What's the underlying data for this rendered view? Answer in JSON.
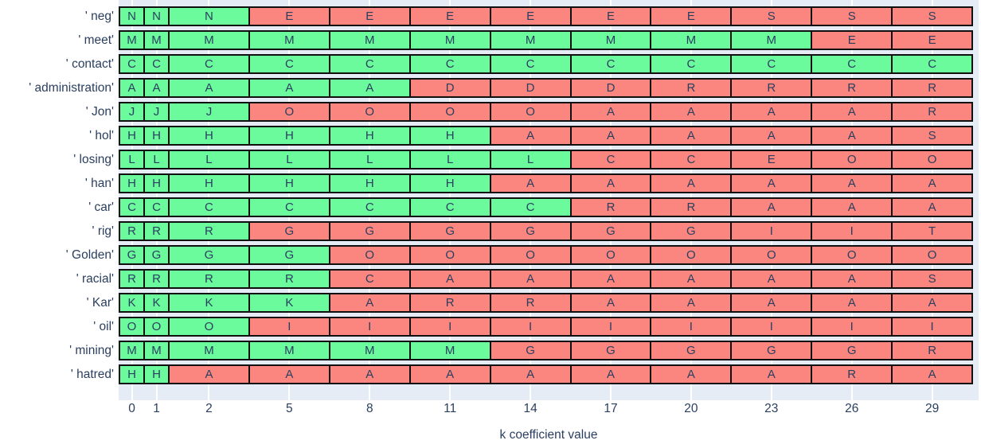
{
  "colors": {
    "match_green": "#6bfa9c",
    "mismatch_red": "#fa867f",
    "plot_background": "#e5ecf6",
    "text_navy": "#2a3f5f",
    "cell_border": "#101010",
    "gridline_white": "#ffffff"
  },
  "chart_data": {
    "type": "heatmap",
    "title": "",
    "xlabel": "k coefficient value",
    "ylabel": "",
    "x_ticks": [
      "0",
      "1",
      "2",
      "5",
      "8",
      "11",
      "14",
      "17",
      "20",
      "23",
      "26",
      "29"
    ],
    "grid": true,
    "legend_position": "none",
    "rows": [
      {
        "label": "' neg'",
        "letters": [
          "N",
          "N",
          "N",
          "E",
          "E",
          "E",
          "E",
          "E",
          "E",
          "S",
          "S",
          "S"
        ],
        "colors": [
          "green",
          "green",
          "green",
          "red",
          "red",
          "red",
          "red",
          "red",
          "red",
          "red",
          "red",
          "red"
        ]
      },
      {
        "label": "' meet'",
        "letters": [
          "M",
          "M",
          "M",
          "M",
          "M",
          "M",
          "M",
          "M",
          "M",
          "M",
          "E",
          "E"
        ],
        "colors": [
          "green",
          "green",
          "green",
          "green",
          "green",
          "green",
          "green",
          "green",
          "green",
          "green",
          "red",
          "red"
        ]
      },
      {
        "label": "' contact'",
        "letters": [
          "C",
          "C",
          "C",
          "C",
          "C",
          "C",
          "C",
          "C",
          "C",
          "C",
          "C",
          "C"
        ],
        "colors": [
          "green",
          "green",
          "green",
          "green",
          "green",
          "green",
          "green",
          "green",
          "green",
          "green",
          "green",
          "green"
        ]
      },
      {
        "label": "' administration'",
        "letters": [
          "A",
          "A",
          "A",
          "A",
          "A",
          "D",
          "D",
          "D",
          "R",
          "R",
          "R",
          "R"
        ],
        "colors": [
          "green",
          "green",
          "green",
          "green",
          "green",
          "red",
          "red",
          "red",
          "red",
          "red",
          "red",
          "red"
        ]
      },
      {
        "label": "' Jon'",
        "letters": [
          "J",
          "J",
          "J",
          "O",
          "O",
          "O",
          "O",
          "A",
          "A",
          "A",
          "A",
          "R"
        ],
        "colors": [
          "green",
          "green",
          "green",
          "red",
          "red",
          "red",
          "red",
          "red",
          "red",
          "red",
          "red",
          "red"
        ]
      },
      {
        "label": "' hol'",
        "letters": [
          "H",
          "H",
          "H",
          "H",
          "H",
          "H",
          "A",
          "A",
          "A",
          "A",
          "A",
          "S"
        ],
        "colors": [
          "green",
          "green",
          "green",
          "green",
          "green",
          "green",
          "red",
          "red",
          "red",
          "red",
          "red",
          "red"
        ]
      },
      {
        "label": "' losing'",
        "letters": [
          "L",
          "L",
          "L",
          "L",
          "L",
          "L",
          "L",
          "C",
          "C",
          "E",
          "O",
          "O"
        ],
        "colors": [
          "green",
          "green",
          "green",
          "green",
          "green",
          "green",
          "green",
          "red",
          "red",
          "red",
          "red",
          "red"
        ]
      },
      {
        "label": "' han'",
        "letters": [
          "H",
          "H",
          "H",
          "H",
          "H",
          "H",
          "A",
          "A",
          "A",
          "A",
          "A",
          "A"
        ],
        "colors": [
          "green",
          "green",
          "green",
          "green",
          "green",
          "green",
          "red",
          "red",
          "red",
          "red",
          "red",
          "red"
        ]
      },
      {
        "label": "' car'",
        "letters": [
          "C",
          "C",
          "C",
          "C",
          "C",
          "C",
          "C",
          "R",
          "R",
          "A",
          "A",
          "A"
        ],
        "colors": [
          "green",
          "green",
          "green",
          "green",
          "green",
          "green",
          "green",
          "red",
          "red",
          "red",
          "red",
          "red"
        ]
      },
      {
        "label": "' rig'",
        "letters": [
          "R",
          "R",
          "R",
          "G",
          "G",
          "G",
          "G",
          "G",
          "G",
          "I",
          "I",
          "T"
        ],
        "colors": [
          "green",
          "green",
          "green",
          "red",
          "red",
          "red",
          "red",
          "red",
          "red",
          "red",
          "red",
          "red"
        ]
      },
      {
        "label": "' Golden'",
        "letters": [
          "G",
          "G",
          "G",
          "G",
          "O",
          "O",
          "O",
          "O",
          "O",
          "O",
          "O",
          "O"
        ],
        "colors": [
          "green",
          "green",
          "green",
          "green",
          "red",
          "red",
          "red",
          "red",
          "red",
          "red",
          "red",
          "red"
        ]
      },
      {
        "label": "' racial'",
        "letters": [
          "R",
          "R",
          "R",
          "R",
          "C",
          "A",
          "A",
          "A",
          "A",
          "A",
          "A",
          "S"
        ],
        "colors": [
          "green",
          "green",
          "green",
          "green",
          "red",
          "red",
          "red",
          "red",
          "red",
          "red",
          "red",
          "red"
        ]
      },
      {
        "label": "' Kar'",
        "letters": [
          "K",
          "K",
          "K",
          "K",
          "A",
          "R",
          "R",
          "A",
          "A",
          "A",
          "A",
          "A"
        ],
        "colors": [
          "green",
          "green",
          "green",
          "green",
          "red",
          "red",
          "red",
          "red",
          "red",
          "red",
          "red",
          "red"
        ]
      },
      {
        "label": "' oil'",
        "letters": [
          "O",
          "O",
          "O",
          "I",
          "I",
          "I",
          "I",
          "I",
          "I",
          "I",
          "I",
          "I"
        ],
        "colors": [
          "green",
          "green",
          "green",
          "red",
          "red",
          "red",
          "red",
          "red",
          "red",
          "red",
          "red",
          "red"
        ]
      },
      {
        "label": "' mining'",
        "letters": [
          "M",
          "M",
          "M",
          "M",
          "M",
          "M",
          "G",
          "G",
          "G",
          "G",
          "G",
          "R"
        ],
        "colors": [
          "green",
          "green",
          "green",
          "green",
          "green",
          "green",
          "red",
          "red",
          "red",
          "red",
          "red",
          "red"
        ]
      },
      {
        "label": "' hatred'",
        "letters": [
          "H",
          "H",
          "A",
          "A",
          "A",
          "A",
          "A",
          "A",
          "A",
          "A",
          "R",
          "A"
        ],
        "colors": [
          "green",
          "green",
          "red",
          "red",
          "red",
          "red",
          "red",
          "red",
          "red",
          "red",
          "red",
          "red"
        ]
      }
    ]
  }
}
